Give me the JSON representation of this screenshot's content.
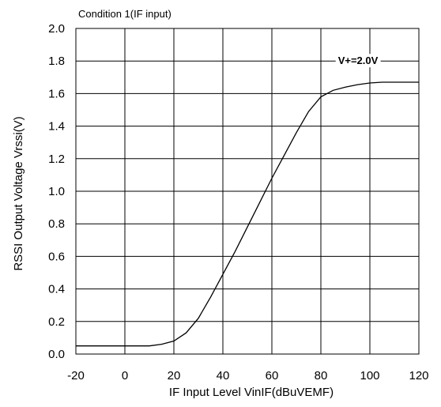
{
  "chart_data": {
    "type": "line",
    "title": "Condition 1(IF input)",
    "xlabel": "IF Input Level VinIF(dBuVEMF)",
    "ylabel": "RSSI Output Voltage Vrssi(V)",
    "xlim": [
      -20,
      120
    ],
    "ylim": [
      0.0,
      2.0
    ],
    "x_ticks": [
      "-20",
      "0",
      "20",
      "40",
      "60",
      "80",
      "100",
      "120"
    ],
    "y_ticks": [
      "0.0",
      "0.2",
      "0.4",
      "0.6",
      "0.8",
      "1.0",
      "1.2",
      "1.4",
      "1.6",
      "1.8",
      "2.0"
    ],
    "grid": true,
    "annotation": "V+=2.0V",
    "series": [
      {
        "color": "#000000",
        "x": [
          -20,
          -10,
          0,
          10,
          15,
          20,
          25,
          30,
          35,
          40,
          45,
          50,
          55,
          60,
          65,
          70,
          75,
          80,
          85,
          90,
          95,
          100,
          105,
          110,
          115,
          120
        ],
        "y": [
          0.05,
          0.05,
          0.05,
          0.05,
          0.06,
          0.08,
          0.13,
          0.22,
          0.35,
          0.49,
          0.63,
          0.78,
          0.93,
          1.08,
          1.22,
          1.36,
          1.49,
          1.58,
          1.62,
          1.64,
          1.655,
          1.665,
          1.67,
          1.67,
          1.67,
          1.67
        ]
      }
    ]
  }
}
